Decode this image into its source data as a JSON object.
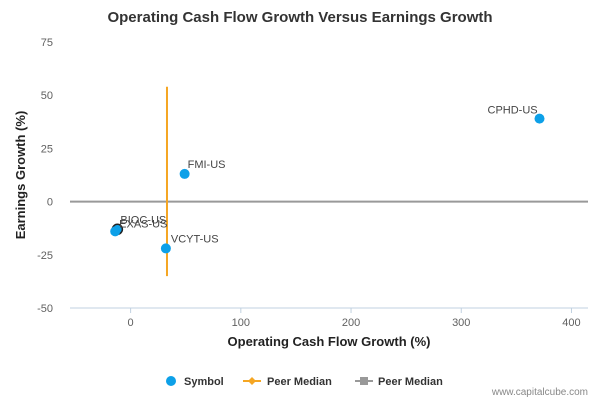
{
  "chart_data": {
    "type": "scatter",
    "title": "Operating Cash Flow Growth Versus Earnings Growth",
    "xlabel": "Operating Cash Flow Growth (%)",
    "ylabel": "Earnings Growth (%)",
    "xlim": [
      -55,
      415
    ],
    "ylim": [
      -50,
      75
    ],
    "xticks": [
      0,
      100,
      200,
      300,
      400
    ],
    "yticks": [
      -50,
      -25,
      0,
      25,
      50,
      75
    ],
    "series": [
      {
        "name": "Symbol",
        "color": "#0da0e8",
        "points": [
          {
            "label": "CPHD-US",
            "x": 371,
            "y": 39
          },
          {
            "label": "FMI-US",
            "x": 49,
            "y": 13
          },
          {
            "label": "VCYT-US",
            "x": 32,
            "y": -22
          },
          {
            "label": "BIOC-US",
            "x": -12,
            "y": -13
          },
          {
            "label": "EXAS-US",
            "x": -14,
            "y": -14
          }
        ]
      }
    ],
    "peer_median_x": {
      "name": "Peer Median",
      "value": 33,
      "color": "#f5a623"
    },
    "peer_median_y": {
      "name": "Peer Median",
      "value": 0,
      "color": "#999999"
    },
    "grid": false,
    "legend_position": "bottom"
  },
  "credit": "www.capitalcube.com"
}
